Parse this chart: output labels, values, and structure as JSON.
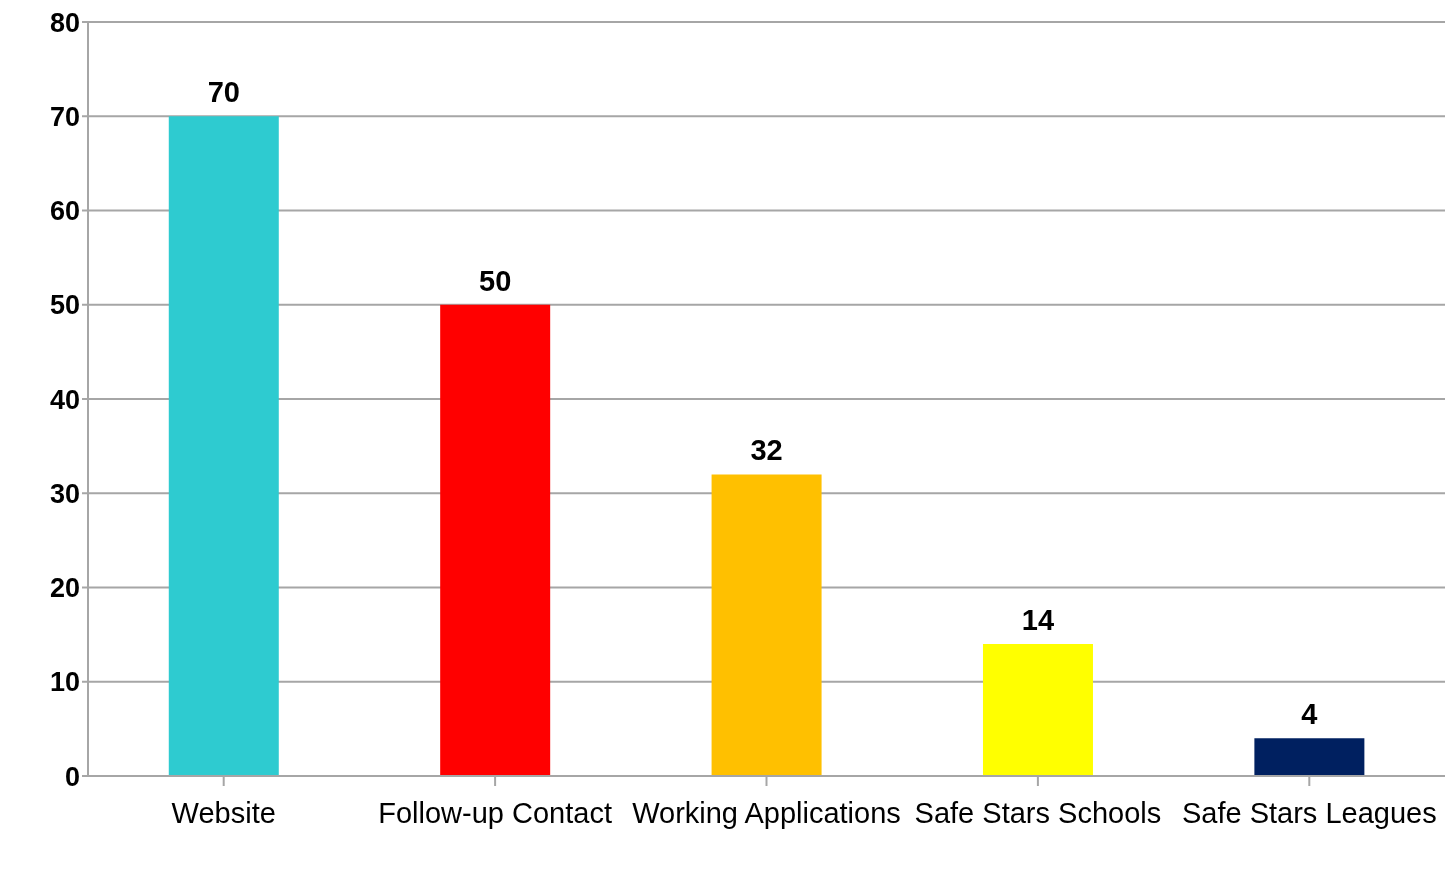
{
  "chart_data": {
    "type": "bar",
    "categories": [
      "Website",
      "Follow-up Contact",
      "Working Applications",
      "Safe Stars Schools",
      "Safe Stars Leagues"
    ],
    "values": [
      70,
      50,
      32,
      14,
      4
    ],
    "colors": [
      "#2ecbd0",
      "#ff0000",
      "#ffc000",
      "#ffff00",
      "#002060"
    ],
    "ylim": [
      0,
      80
    ],
    "yticks": [
      0,
      10,
      20,
      30,
      40,
      50,
      60,
      70,
      80
    ],
    "grid": "y",
    "data_labels": true
  }
}
